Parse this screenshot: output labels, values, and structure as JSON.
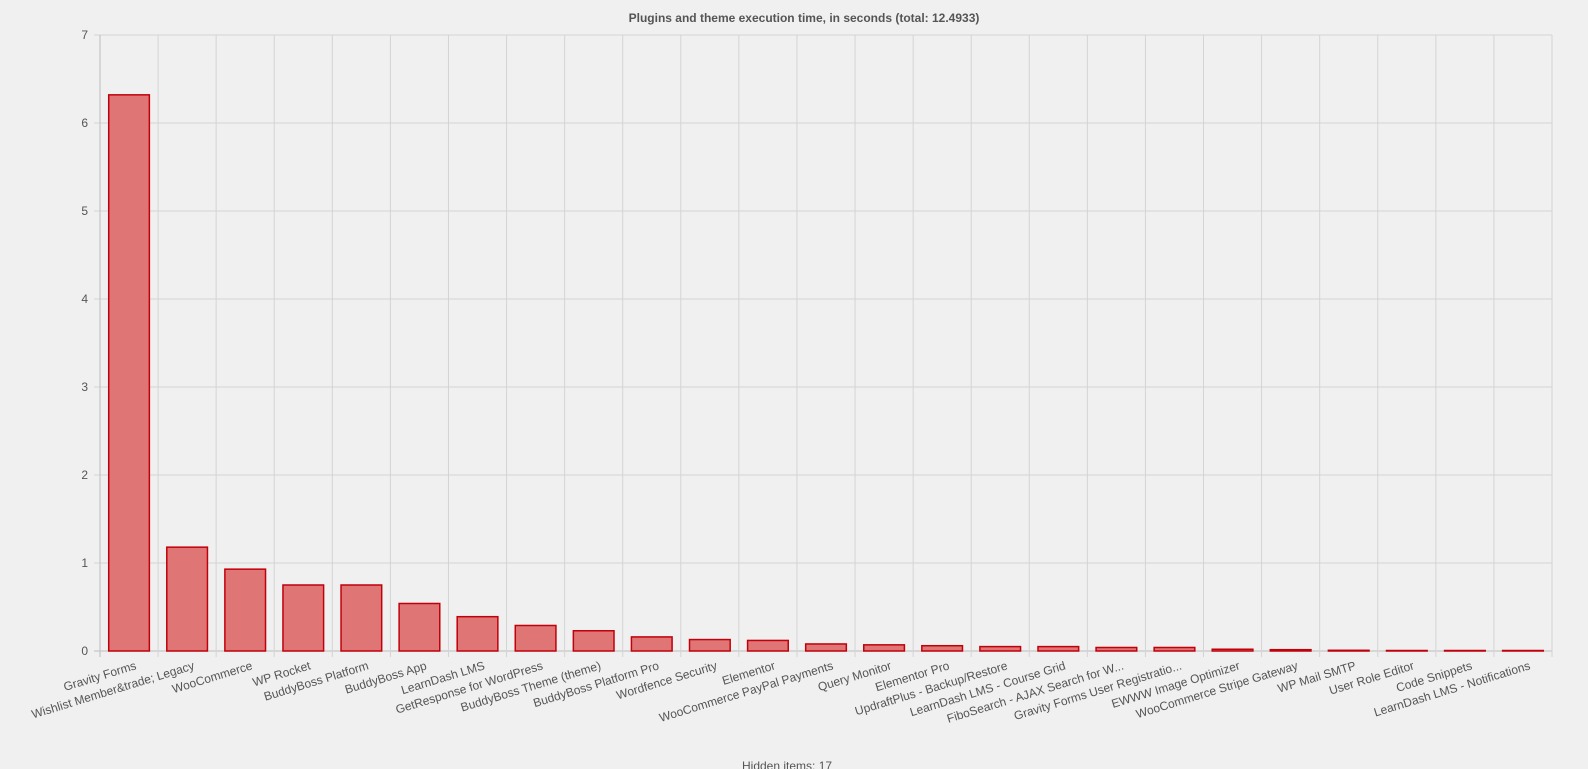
{
  "chart_data": {
    "type": "bar",
    "title": "Plugins and theme execution time, in seconds (total: 12.4933)",
    "xlabel": "",
    "ylabel": "",
    "ylim": [
      0,
      7
    ],
    "yticks": [
      0,
      1,
      2,
      3,
      4,
      5,
      6,
      7
    ],
    "grid": true,
    "bar_color": "#e07575",
    "bar_border_color": "#c0000a",
    "categories": [
      "Gravity Forms",
      "Wishlist Member&trade; Legacy",
      "WooCommerce",
      "WP Rocket",
      "BuddyBoss Platform",
      "BuddyBoss App",
      "LearnDash LMS",
      "GetResponse for WordPress",
      "BuddyBoss Theme (theme)",
      "BuddyBoss Platform Pro",
      "Wordfence Security",
      "Elementor",
      "WooCommerce PayPal Payments",
      "Query Monitor",
      "Elementor Pro",
      "UpdraftPlus - Backup/Restore",
      "LearnDash LMS - Course Grid",
      "FiboSearch - AJAX Search for W...",
      "Gravity Forms User Registratio...",
      "EWWW Image Optimizer",
      "WooCommerce Stripe Gateway",
      "WP Mail SMTP",
      "User Role Editor",
      "Code Snippets",
      "LearnDash LMS - Notifications"
    ],
    "values": [
      6.32,
      1.18,
      0.93,
      0.75,
      0.75,
      0.54,
      0.39,
      0.29,
      0.23,
      0.16,
      0.13,
      0.12,
      0.08,
      0.07,
      0.06,
      0.05,
      0.05,
      0.04,
      0.04,
      0.02,
      0.015,
      0.008,
      0.004,
      0.003,
      0.002
    ]
  },
  "footer": {
    "hidden_note": "Hidden items: 17"
  }
}
